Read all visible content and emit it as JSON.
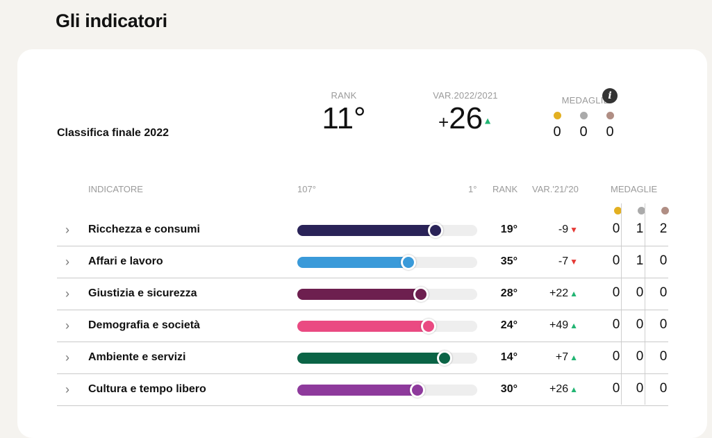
{
  "page_title": "Gli indicatori",
  "summary": {
    "label": "Classifica finale 2022",
    "rank_header": "RANK",
    "rank_value": "11°",
    "var_header": "VAR.2022/2021",
    "var_sign": "+",
    "var_value": "26",
    "var_direction": "up",
    "medals_header": "MEDAGLIE",
    "medals": [
      "0",
      "0",
      "0"
    ]
  },
  "table": {
    "headers": {
      "indicator": "INDICATORE",
      "scale_low": "107°",
      "scale_high": "1°",
      "rank": "RANK",
      "var": "VAR.'21/'20",
      "medals": "MEDAGLIE"
    },
    "rows": [
      {
        "label": "Ricchezza e consumi",
        "rank": "19°",
        "var": "-9",
        "direction": "down",
        "score_fraction": 0.78,
        "color": "#2a2358",
        "medals": [
          "0",
          "1",
          "2"
        ]
      },
      {
        "label": "Affari e lavoro",
        "rank": "35°",
        "var": "-7",
        "direction": "down",
        "score_fraction": 0.63,
        "color": "#3a9ad9",
        "medals": [
          "0",
          "1",
          "0"
        ]
      },
      {
        "label": "Giustizia e sicurezza",
        "rank": "28°",
        "var": "+22",
        "direction": "up",
        "score_fraction": 0.7,
        "color": "#6d1f4f",
        "medals": [
          "0",
          "0",
          "0"
        ]
      },
      {
        "label": "Demografia e società",
        "rank": "24°",
        "var": "+49",
        "direction": "up",
        "score_fraction": 0.74,
        "color": "#ea4a82",
        "medals": [
          "0",
          "0",
          "0"
        ]
      },
      {
        "label": "Ambiente e servizi",
        "rank": "14°",
        "var": "+7",
        "direction": "up",
        "score_fraction": 0.83,
        "color": "#0b6446",
        "medals": [
          "0",
          "0",
          "0"
        ]
      },
      {
        "label": "Cultura e tempo libero",
        "rank": "30°",
        "var": "+26",
        "direction": "up",
        "score_fraction": 0.68,
        "color": "#8e3a9c",
        "medals": [
          "0",
          "0",
          "0"
        ]
      }
    ]
  },
  "icons": {
    "info": "info-icon",
    "chevron": "chevron-right-icon",
    "up_arrow": "▲",
    "down_arrow": "▼"
  },
  "medal_colors": {
    "gold": "#e3b021",
    "silver": "#aaaaaa",
    "bronze": "#b08e84"
  },
  "chevron_glyph": "›",
  "info_glyph": "i"
}
